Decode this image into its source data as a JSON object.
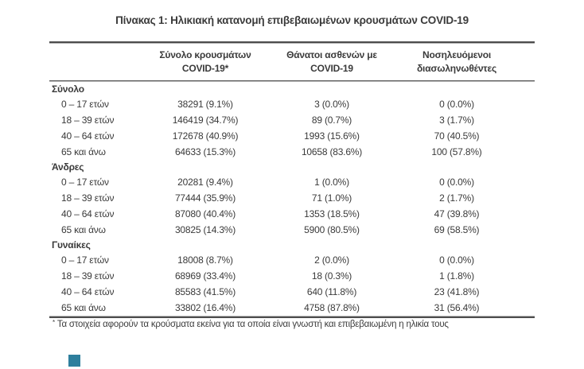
{
  "title": "Πίνακας 1: Ηλικιακή κατανομή επιβεβαιωμένων κρουσμάτων COVID-19",
  "table": {
    "columns": [
      {
        "line1": "Σύνολο κρουσμάτων",
        "line2": "COVID-19*"
      },
      {
        "line1": "Θάνατοι ασθενών με",
        "line2": "COVID-19"
      },
      {
        "line1": "Νοσηλευόμενοι",
        "line2": "διασωληνωθέντες"
      }
    ],
    "sections": [
      {
        "name": "Σύνολο",
        "rows": [
          {
            "label": "0 – 17 ετών",
            "cells": [
              "38291 (9.1%)",
              "3 (0.0%)",
              "0 (0.0%)"
            ]
          },
          {
            "label": "18 – 39 ετών",
            "cells": [
              "146419 (34.7%)",
              "89 (0.7%)",
              "3 (1.7%)"
            ]
          },
          {
            "label": "40 – 64 ετών",
            "cells": [
              "172678 (40.9%)",
              "1993 (15.6%)",
              "70 (40.5%)"
            ]
          },
          {
            "label": "65 και άνω",
            "cells": [
              "64633 (15.3%)",
              "10658 (83.6%)",
              "100 (57.8%)"
            ]
          }
        ]
      },
      {
        "name": "Άνδρες",
        "rows": [
          {
            "label": "0 – 17 ετών",
            "cells": [
              "20281 (9.4%)",
              "1 (0.0%)",
              "0 (0.0%)"
            ]
          },
          {
            "label": "18 – 39 ετών",
            "cells": [
              "77444 (35.9%)",
              "71 (1.0%)",
              "2 (1.7%)"
            ]
          },
          {
            "label": "40 – 64 ετών",
            "cells": [
              "87080 (40.4%)",
              "1353 (18.5%)",
              "47 (39.8%)"
            ]
          },
          {
            "label": "65 και άνω",
            "cells": [
              "30825 (14.3%)",
              "5900 (80.5%)",
              "69 (58.5%)"
            ]
          }
        ]
      },
      {
        "name": "Γυναίκες",
        "rows": [
          {
            "label": "0 – 17 ετών",
            "cells": [
              "18008 (8.7%)",
              "2 (0.0%)",
              "0 (0.0%)"
            ]
          },
          {
            "label": "18 – 39 ετών",
            "cells": [
              "68969 (33.4%)",
              "18 (0.3%)",
              "1 (1.8%)"
            ]
          },
          {
            "label": "40 – 64 ετών",
            "cells": [
              "85583 (41.5%)",
              "640 (11.8%)",
              "23 (41.8%)"
            ]
          },
          {
            "label": "65 και άνω",
            "cells": [
              "33802 (16.4%)",
              "4758 (87.8%)",
              "31 (56.4%)"
            ]
          }
        ]
      }
    ]
  },
  "footnote": {
    "marker": "*",
    "text": "Τα στοιχεία αφορούν τα κρούσματα εκείνα για τα οποία είναι γνωστή και επιβεβαιωμένη η ηλικία τους"
  },
  "colors": {
    "text": "#3a3a3a",
    "rule_dark": "#4d4d4d",
    "rule_light": "#b5b5b5",
    "accent_square": "#2e7f9d"
  }
}
